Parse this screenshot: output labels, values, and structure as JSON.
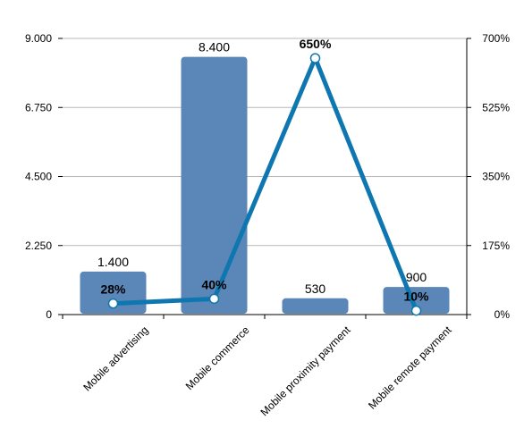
{
  "chart_data": {
    "type": "bar",
    "categories": [
      "Mobile advertising",
      "Mobile commerce",
      "Mobile proximity payment",
      "Mobile remote payment"
    ],
    "series": [
      {
        "type": "bar",
        "axis": "left",
        "values": [
          1400,
          8400,
          530,
          900
        ],
        "value_labels": [
          "1.400",
          "8.400",
          "530",
          "900"
        ],
        "color": "#5b86b8"
      },
      {
        "type": "line",
        "axis": "right",
        "values": [
          28,
          40,
          650,
          10
        ],
        "value_labels": [
          "28%",
          "40%",
          "650%",
          "10%"
        ],
        "color": "#0f77b0"
      }
    ],
    "y_left": {
      "min": 0,
      "max": 9000,
      "ticks": [
        0,
        2250,
        4500,
        6750,
        9000
      ],
      "tick_labels": [
        "0",
        "2.250",
        "4.500",
        "6.750",
        "9.000"
      ]
    },
    "y_right": {
      "min": 0,
      "max": 700,
      "ticks": [
        0,
        175,
        350,
        525,
        700
      ],
      "tick_labels": [
        "0%",
        "175%",
        "350%",
        "525%",
        "700%"
      ]
    },
    "grid": true,
    "title": "",
    "xlabel": "",
    "ylabel": ""
  }
}
